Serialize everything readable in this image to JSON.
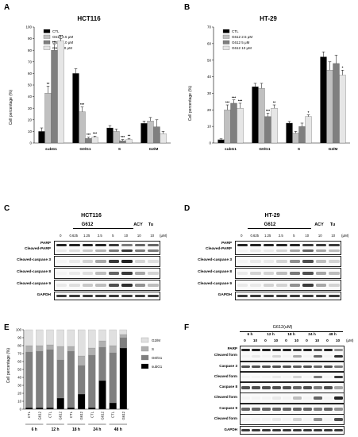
{
  "panels": {
    "A": {
      "letter": "A",
      "title": "HCT116",
      "ylabel": "Cell percentage (%)",
      "legend": [
        "CTL",
        "G612 2.5 μM",
        "G612 5.0 μM",
        "G612 10 μM"
      ],
      "sig": [
        [
          "",
          "**",
          "***",
          "***"
        ],
        [
          "",
          "***",
          "***",
          "***"
        ],
        [
          "",
          "",
          "***",
          "**"
        ],
        [
          "",
          "",
          "",
          ""
        ]
      ]
    },
    "B": {
      "letter": "B",
      "title": "HT-29",
      "ylabel": "Cell percentage (%)",
      "legend": [
        "CTL",
        "G612 2.5 μM",
        "G612 5 μM",
        "G612 10 μM"
      ],
      "sig": [
        [
          "",
          "***",
          "***",
          "***"
        ],
        [
          "",
          "",
          "***",
          "**"
        ],
        [
          "",
          "",
          "",
          "*"
        ],
        [
          "",
          "",
          "",
          "*"
        ]
      ]
    },
    "C": {
      "letter": "C",
      "title": "HCT116",
      "group": "G612",
      "doses": [
        "0",
        "0.625",
        "1.25",
        "2.5",
        "5",
        "10",
        "10",
        "10"
      ],
      "extra": [
        "ACY",
        "Tu"
      ],
      "unit": "(μM)",
      "rows": [
        "PARP",
        "Cleaved-PARP",
        "Cleaved-caspase 3",
        "Cleaved-caspase 8",
        "Cleaved-caspase 9",
        "GAPDH"
      ]
    },
    "D": {
      "letter": "D",
      "title": "HT-29",
      "group": "G612",
      "doses": [
        "0",
        "0.625",
        "1.25",
        "2.5",
        "5",
        "10",
        "10",
        "10"
      ],
      "extra": [
        "ACY",
        "Tu"
      ],
      "unit": "(μM)",
      "rows": [
        "PARP",
        "Cleaved-PARP",
        "Cleaved-caspase 3",
        "Cleaved-caspase 8",
        "Cleaved-caspase 9",
        "GAPDH"
      ]
    },
    "E": {
      "letter": "E",
      "ylabel": "Cell percentage (%)",
      "legend": [
        "G2/M",
        "S",
        "G0/G1",
        "subG1"
      ],
      "times": [
        "6 h",
        "12 h",
        "18 h",
        "24 h",
        "48 h"
      ],
      "bar_labels": [
        "CTL",
        "G612",
        "CTL",
        "G612",
        "CTL",
        "G612",
        "CTL",
        "G612",
        "CTL",
        "G612"
      ]
    },
    "F": {
      "letter": "F",
      "title": "G612(uM)",
      "times": [
        "6 h",
        "12 h",
        "18 h",
        "24 h",
        "48 h"
      ],
      "doses": [
        "0",
        "10",
        "0",
        "10",
        "0",
        "10",
        "0",
        "10",
        "0",
        "10"
      ],
      "unit": "(μM)",
      "rows": [
        "PARP",
        "Cleaved form",
        "Caspase 3",
        "Cleaved form",
        "Caspase 8",
        "Cleaved form",
        "Caspase 9",
        "Cleaved form",
        "GAPDH"
      ]
    }
  },
  "chart_data": [
    {
      "panel": "A",
      "type": "bar",
      "title": "HCT116",
      "ylabel": "Cell percentage (%)",
      "ylim": [
        0,
        100
      ],
      "yticks": [
        0,
        10,
        20,
        30,
        40,
        50,
        60,
        70,
        80,
        90,
        100
      ],
      "categories": [
        "subG1",
        "G0/G1",
        "S",
        "G2/M"
      ],
      "series": [
        {
          "name": "CTL",
          "values": [
            10,
            60,
            13,
            17
          ],
          "err": [
            3,
            4,
            2,
            2
          ],
          "color": "#000000"
        },
        {
          "name": "G612 2.5 μM",
          "values": [
            43,
            27,
            10,
            19
          ],
          "err": [
            6,
            4,
            2,
            3
          ],
          "color": "#c0c0c0"
        },
        {
          "name": "G612 5.0 μM",
          "values": [
            80,
            4,
            2,
            14
          ],
          "err": [
            5,
            1,
            1,
            6
          ],
          "color": "#7f7f7f"
        },
        {
          "name": "G612 10 μM",
          "values": [
            88,
            5,
            3,
            8
          ],
          "err": [
            2,
            1,
            1,
            2
          ],
          "color": "#e6e6e6"
        }
      ]
    },
    {
      "panel": "B",
      "type": "bar",
      "title": "HT-29",
      "ylabel": "Cell percentage (%)",
      "ylim": [
        0,
        70
      ],
      "yticks": [
        0,
        10,
        20,
        30,
        40,
        50,
        60,
        70
      ],
      "categories": [
        "subG1",
        "G0/G1",
        "S",
        "G2/M"
      ],
      "series": [
        {
          "name": "CTL",
          "values": [
            2,
            34,
            12,
            52
          ],
          "err": [
            0.5,
            2,
            1,
            3
          ],
          "color": "#000000"
        },
        {
          "name": "G612 2.5 μM",
          "values": [
            20,
            33,
            6,
            44
          ],
          "err": [
            3,
            3,
            1,
            5
          ],
          "color": "#c0c0c0"
        },
        {
          "name": "G612 5 μM",
          "values": [
            24,
            16,
            10,
            48
          ],
          "err": [
            2,
            2,
            2,
            5
          ],
          "color": "#7f7f7f"
        },
        {
          "name": "G612 10 μM",
          "values": [
            21,
            21,
            16,
            41
          ],
          "err": [
            3,
            2,
            1,
            3
          ],
          "color": "#e6e6e6"
        }
      ]
    },
    {
      "panel": "E",
      "type": "bar",
      "stacked": true,
      "ylabel": "Cell percentage (%)",
      "ylim": [
        0,
        100
      ],
      "yticks": [
        0,
        10,
        20,
        30,
        40,
        50,
        60,
        70,
        80,
        90,
        100
      ],
      "categories": [
        "CTL",
        "G612",
        "CTL",
        "G612",
        "CTL",
        "G612",
        "CTL",
        "G612",
        "CTL",
        "G612"
      ],
      "series": [
        {
          "name": "subG1",
          "values": [
            2,
            2,
            2,
            14,
            2,
            19,
            2,
            36,
            8,
            77
          ],
          "color": "#000000"
        },
        {
          "name": "G0/G1",
          "values": [
            70,
            71,
            73,
            48,
            71,
            36,
            66,
            42,
            63,
            13
          ],
          "color": "#7f7f7f"
        },
        {
          "name": "S",
          "values": [
            8,
            7,
            6,
            17,
            6,
            12,
            9,
            8,
            9,
            4
          ],
          "color": "#b0b0b0"
        },
        {
          "name": "G2/M",
          "values": [
            20,
            20,
            19,
            21,
            21,
            33,
            23,
            14,
            20,
            6
          ],
          "color": "#e0e0e0"
        }
      ]
    }
  ]
}
